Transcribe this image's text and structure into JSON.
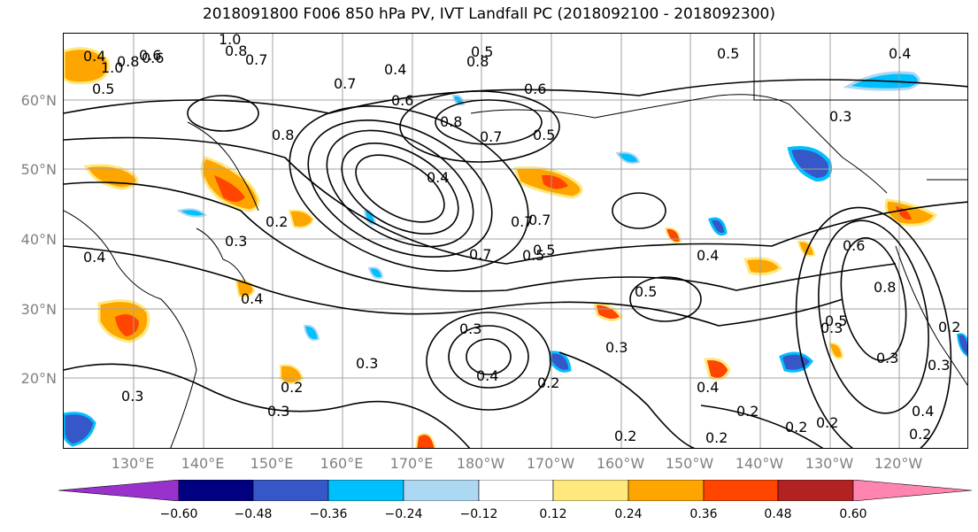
{
  "title": "2018091800 F006 850 hPa PV, IVT Landfall PC (2018092100 - 2018092300)",
  "lat_labels": [
    "60°N",
    "50°N",
    "40°N",
    "30°N",
    "20°N"
  ],
  "lon_labels": [
    "130°E",
    "140°E",
    "150°E",
    "160°E",
    "170°E",
    "180°W",
    "170°W",
    "160°W",
    "150°W",
    "140°W",
    "130°W",
    "120°W"
  ],
  "contour_labels": [
    "1.0",
    "0.8",
    "0.7",
    "0.4",
    "0.8",
    "0.5",
    "0.6",
    "0.4",
    "1.0",
    "0.8",
    "0.6",
    "0.5",
    "0.6",
    "0.7",
    "0.8",
    "0.5",
    "0.6",
    "0.8",
    "0.7",
    "0.5",
    "0.3",
    "0.4",
    "0.4",
    "0.7",
    "0.2",
    "0.3",
    "0.4",
    "0.7",
    "0.5",
    "0.4",
    "0.5",
    "0.6",
    "0.8",
    "0.5",
    "0.4",
    "0.3",
    "0.3",
    "0.2",
    "0.3",
    "0.3",
    "0.4",
    "0.2",
    "0.3",
    "0.2",
    "0.2",
    "0.2",
    "0.2",
    "0.4",
    "0.2",
    "0.3",
    "0.2",
    "0.3",
    "0.3",
    "0.4",
    "0.2",
    "0.7",
    "0.5"
  ],
  "colorbar": {
    "colors": [
      "#9932cc",
      "#000080",
      "#3557c8",
      "#00bfff",
      "#add8f4",
      "#ffffff",
      "#ffe97f",
      "#ffa500",
      "#ff4500",
      "#b22222",
      "#ff85b0"
    ],
    "ticks": [
      "−0.60",
      "−0.48",
      "−0.36",
      "−0.24",
      "−0.12",
      "0.12",
      "0.24",
      "0.36",
      "0.48",
      "0.60"
    ]
  }
}
